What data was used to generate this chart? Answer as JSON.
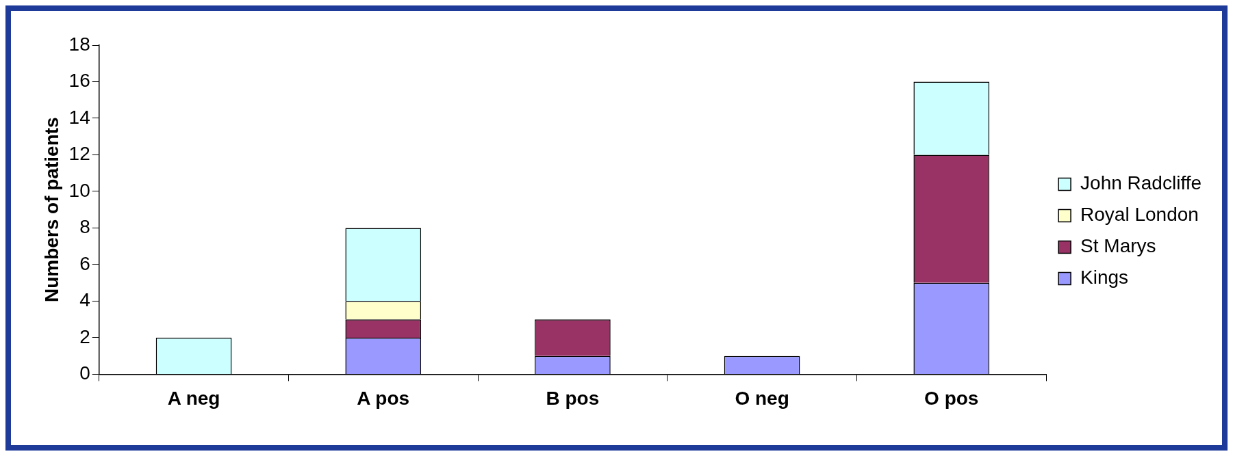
{
  "chart_data": {
    "type": "bar",
    "ylabel": "Numbers of patients",
    "categories": [
      "A neg",
      "A pos",
      "B pos",
      "O neg",
      "O pos"
    ],
    "stacked": true,
    "series": [
      {
        "name": "Kings",
        "color": "#9999ff",
        "values": [
          0,
          2,
          1,
          1,
          5
        ]
      },
      {
        "name": "St Marys",
        "color": "#993366",
        "values": [
          0,
          1,
          2,
          0,
          7
        ]
      },
      {
        "name": "Royal London",
        "color": "#ffffcc",
        "values": [
          0,
          1,
          0,
          0,
          0
        ]
      },
      {
        "name": "John Radcliffe",
        "color": "#ccffff",
        "values": [
          2,
          4,
          0,
          0,
          4
        ]
      }
    ],
    "ylim": [
      0,
      18
    ],
    "yticks": [
      0,
      2,
      4,
      6,
      8,
      10,
      12,
      14,
      16,
      18
    ],
    "grid": false,
    "legend": "right"
  }
}
